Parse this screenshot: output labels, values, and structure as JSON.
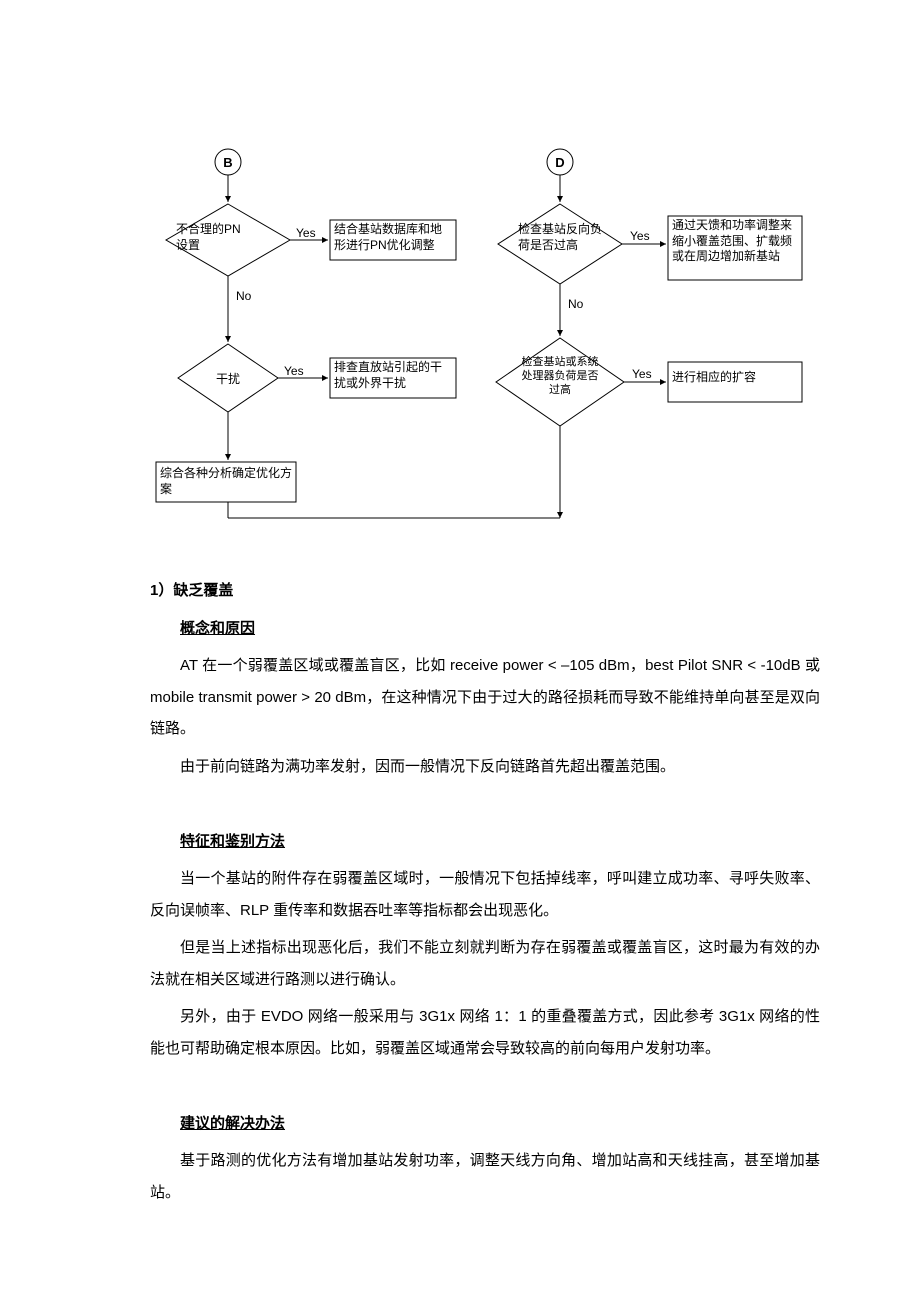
{
  "flowchart": {
    "left": {
      "start": "B",
      "d1": "不合理的PN\n设置",
      "d1_yes": "Yes",
      "r1": "结合基站数据库和地形进行PN优化调整",
      "d1_no": "No",
      "d2": "干扰",
      "d2_yes": "Yes",
      "r2": "排查直放站引起的干扰或外界干扰",
      "r_final": "综合各种分析确定优化方案"
    },
    "right": {
      "start": "D",
      "d1": "检查基站反向负荷是否过高",
      "d1_yes": "Yes",
      "r1": "通过天馈和功率调整来缩小覆盖范围、扩载频或在周边增加新基站",
      "d1_no": "No",
      "d2": "检查基站或系统处理器负荷是否过高",
      "d2_yes": "Yes",
      "r2": "进行相应的扩容"
    }
  },
  "doc": {
    "h1": "1）缺乏覆盖",
    "h2": "概念和原因",
    "p1a": "AT 在一个弱覆盖区域或覆盖盲区，比如 ",
    "p1b": "receive power < –105 dBm",
    "p1c": "，",
    "p1d": "best Pilot SNR < -10dB",
    "p1e": " 或 ",
    "p1f": "mobile transmit power > 20 dBm",
    "p1g": "，在这种情况下由于过大的路径损耗而导致不能维持单向甚至是双向链路。",
    "p2": "由于前向链路为满功率发射，因而一般情况下反向链路首先超出覆盖范围。",
    "h3": "特征和鉴别方法",
    "p3": "当一个基站的附件存在弱覆盖区域时，一般情况下包括掉线率，呼叫建立成功率、寻呼失败率、反向误帧率、RLP 重传率和数据吞吐率等指标都会出现恶化。",
    "p4": "但是当上述指标出现恶化后，我们不能立刻就判断为存在弱覆盖或覆盖盲区，这时最为有效的办法就在相关区域进行路测以进行确认。",
    "p5": "另外，由于 EVDO 网络一般采用与 3G1x 网络 1：1 的重叠覆盖方式，因此参考 3G1x 网络的性能也可帮助确定根本原因。比如，弱覆盖区域通常会导致较高的前向每用户发射功率。",
    "h4": "建议的解决办法",
    "p6": "基于路测的优化方法有增加基站发射功率，调整天线方向角、增加站高和天线挂高，甚至增加基站。"
  }
}
